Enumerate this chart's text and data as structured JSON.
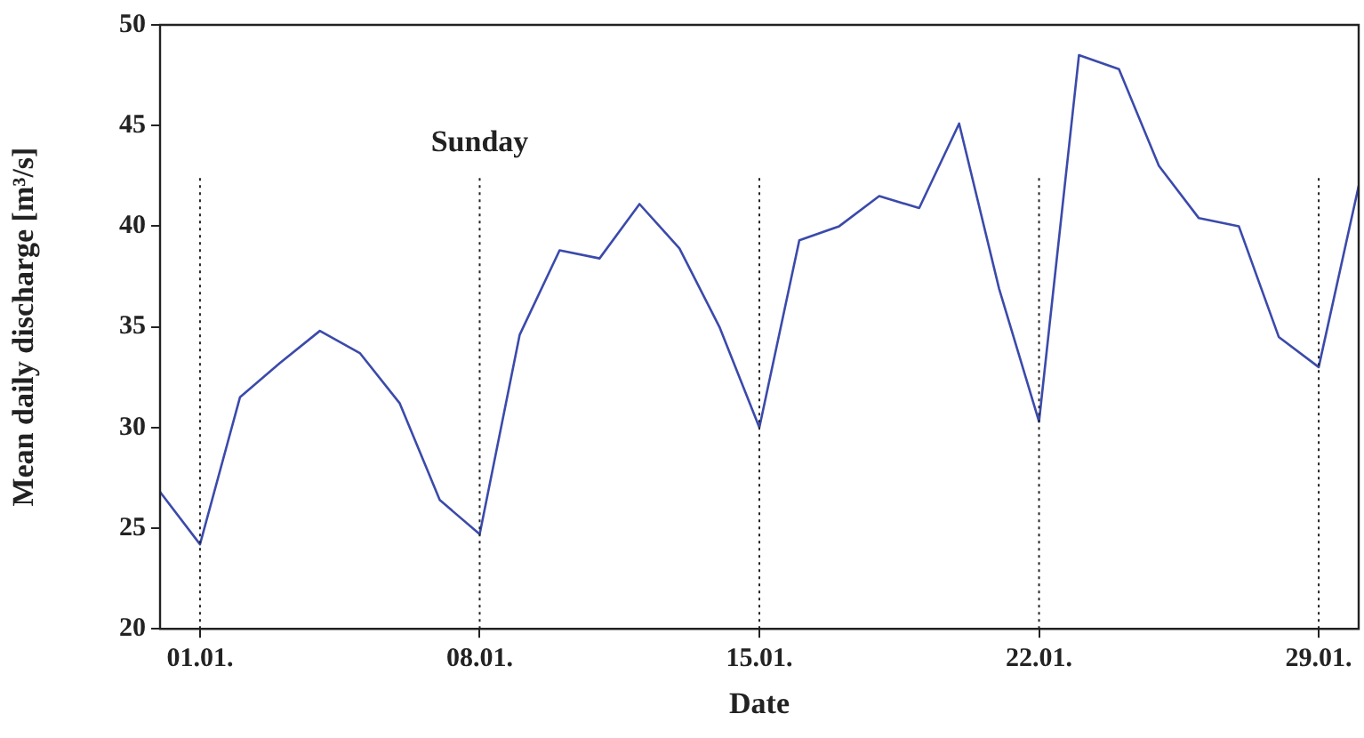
{
  "chart_data": {
    "type": "line",
    "xlabel": "Date",
    "ylabel": "Mean daily discharge [m³/s]",
    "categories": [
      null,
      "01.01.",
      null,
      null,
      null,
      null,
      null,
      null,
      "08.01.",
      null,
      null,
      null,
      null,
      null,
      null,
      "15.01.",
      null,
      null,
      null,
      null,
      null,
      null,
      "22.01.",
      null,
      null,
      null,
      null,
      null,
      null,
      "29.01.",
      null
    ],
    "series": [
      {
        "color": "#3b4aab",
        "values": [
          26.8,
          24.2,
          31.5,
          33.2,
          34.8,
          33.7,
          31.2,
          26.4,
          24.7,
          34.6,
          38.8,
          38.4,
          41.1,
          38.9,
          35.0,
          30.0,
          39.3,
          40.0,
          41.5,
          40.9,
          45.1,
          36.9,
          30.3,
          48.5,
          47.8,
          43.0,
          40.4,
          40.0,
          34.5,
          33.0,
          42.0
        ]
      }
    ],
    "ylim": [
      20,
      50
    ],
    "yticks": [
      20,
      25,
      30,
      35,
      40,
      45,
      50
    ],
    "ref_lines": [
      {
        "axis": "x",
        "value": "01.01.",
        "label": null,
        "line_style": "dotted"
      },
      {
        "axis": "x",
        "value": "08.01.",
        "label": "Sunday",
        "line_style": "dotted"
      },
      {
        "axis": "x",
        "value": "15.01.",
        "label": null,
        "line_style": "dotted"
      },
      {
        "axis": "x",
        "value": "22.01.",
        "label": null,
        "line_style": "dotted"
      },
      {
        "axis": "x",
        "value": "29.01.",
        "label": null,
        "line_style": "dotted"
      }
    ],
    "legend": false,
    "marker": "none",
    "line_style": "solid"
  }
}
